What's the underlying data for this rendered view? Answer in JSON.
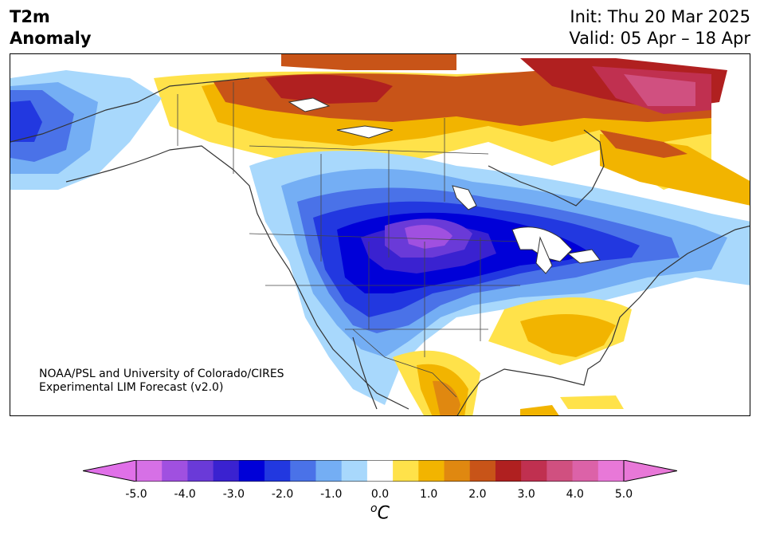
{
  "title": {
    "variable": "T2m",
    "field": "Anomaly",
    "init": "Init: Thu 20 Mar 2025",
    "valid": "Valid: 05 Apr – 18 Apr"
  },
  "credit": {
    "line1": "NOAA/PSL and University of Colorado/CIRES",
    "line2": "Experimental LIM Forecast (v2.0)"
  },
  "colorbar": {
    "unit_sup": "o",
    "unit": "C",
    "ticks": [
      "-5.0",
      "-4.0",
      "-3.0",
      "-2.0",
      "-1.0",
      "0.0",
      "1.0",
      "2.0",
      "3.0",
      "4.0",
      "5.0"
    ],
    "levels": [
      -5.0,
      -4.5,
      -4.0,
      -3.5,
      -3.0,
      -2.5,
      -2.0,
      -1.5,
      -1.0,
      -0.5,
      0.5,
      1.0,
      1.5,
      2.0,
      2.5,
      3.0,
      3.5,
      4.0,
      4.5,
      5.0
    ],
    "colors": [
      "#d670e6",
      "#a050e0",
      "#6a3ad8",
      "#3a22d0",
      "#0000d8",
      "#2238e0",
      "#4a72e8",
      "#74aef4",
      "#a8d8fc",
      "#ffffff",
      "#ffe24a",
      "#f2b400",
      "#e08810",
      "#c85418",
      "#b02020",
      "#c03050",
      "#d05080",
      "#dc62a8",
      "#e878d8"
    ],
    "under_color": "#e070e8",
    "over_color": "#e878d8"
  },
  "regions": [
    {
      "name": "alaska-cold",
      "anomaly": "-2.0 to -1.0"
    },
    {
      "name": "central-us-cold-core",
      "anomaly": "-4.5 to -4.0"
    },
    {
      "name": "northern-canada-warm",
      "anomaly": "2.0 to 3.0"
    },
    {
      "name": "greenland-warm",
      "anomaly": "3.0 to 4.0"
    },
    {
      "name": "southeast-us-warm",
      "anomaly": "1.0 to 1.5"
    },
    {
      "name": "mexico-warm",
      "anomaly": "1.0 to 2.0"
    }
  ]
}
